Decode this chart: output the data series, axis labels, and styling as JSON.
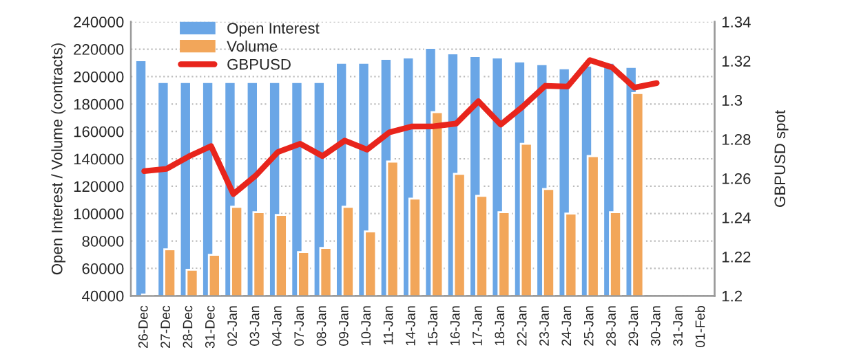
{
  "chart_data": {
    "type": "bar",
    "ylabel": "Open Interest / Volume (contracts)",
    "y2label": "GBPUSD spot",
    "categories": [
      "26-Dec",
      "27-Dec",
      "28-Dec",
      "31-Dec",
      "02-Jan",
      "03-Jan",
      "04-Jan",
      "07-Jan",
      "08-Jan",
      "09-Jan",
      "10-Jan",
      "11-Jan",
      "14-Jan",
      "15-Jan",
      "16-Jan",
      "17-Jan",
      "18-Jan",
      "22-Jan",
      "23-Jan",
      "24-Jan",
      "25-Jan",
      "28-Jan",
      "29-Jan",
      "30-Jan",
      "31-Jan",
      "01-Feb"
    ],
    "series": [
      {
        "name": "Open Interest",
        "color": "#6aa6e6",
        "values": [
          212000,
          196000,
          196000,
          196000,
          196000,
          196000,
          196000,
          196000,
          196000,
          210000,
          210000,
          213000,
          214000,
          221000,
          217000,
          215000,
          214000,
          211000,
          209000,
          206000,
          208000,
          210000,
          207000,
          null,
          null,
          null
        ]
      },
      {
        "name": "Volume",
        "color": "#f2a65a",
        "values": [
          41000,
          74000,
          59000,
          70000,
          105000,
          101000,
          99000,
          72000,
          75000,
          105000,
          87000,
          138000,
          111000,
          174000,
          129000,
          113000,
          101000,
          151000,
          118000,
          100000,
          142000,
          101000,
          188000,
          null,
          null,
          null
        ]
      },
      {
        "name": "GBPUSD",
        "type": "line",
        "axis": "y2",
        "color": "#e8251c",
        "values": [
          1.2637,
          1.2649,
          1.2712,
          1.2765,
          1.252,
          1.2614,
          1.2735,
          1.2777,
          1.2714,
          1.2793,
          1.2747,
          1.2835,
          1.2865,
          1.2866,
          1.288,
          1.2994,
          1.2875,
          1.2968,
          1.3073,
          1.3069,
          1.3204,
          1.3167,
          1.3064,
          1.3087,
          null,
          null
        ]
      }
    ],
    "ylim": [
      40000,
      240000
    ],
    "yticks": [
      40000,
      60000,
      80000,
      100000,
      120000,
      140000,
      160000,
      180000,
      200000,
      220000,
      240000
    ],
    "y2lim": [
      1.2,
      1.34
    ],
    "y2ticks": [
      1.2,
      1.22,
      1.24,
      1.26,
      1.28,
      1.3,
      1.32,
      1.34
    ],
    "grid": "y",
    "legend": "top left"
  }
}
